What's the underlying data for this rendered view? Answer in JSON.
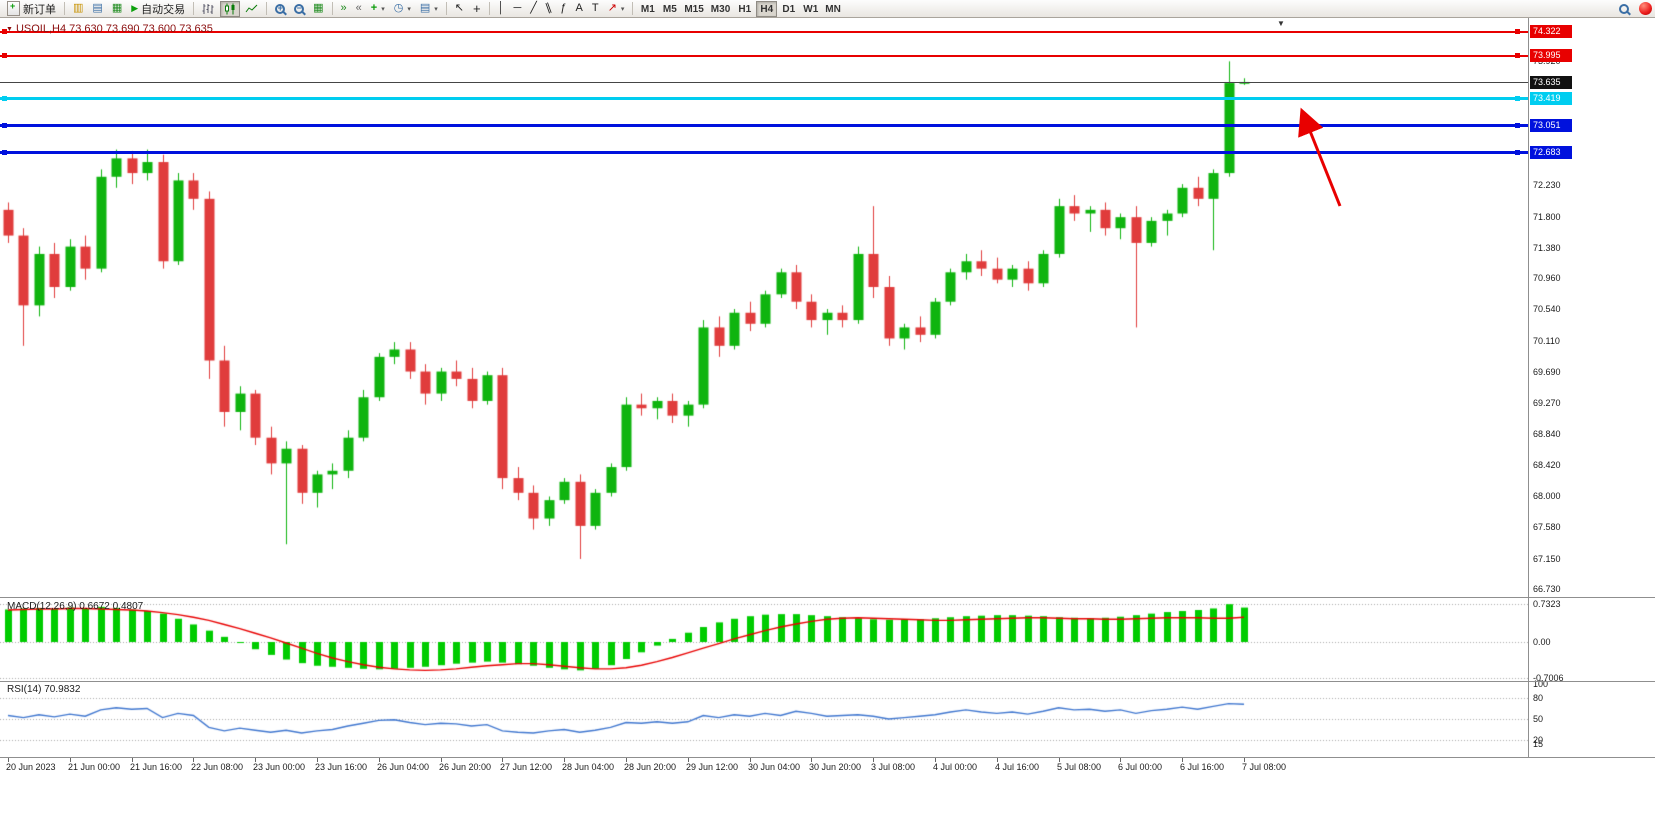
{
  "toolbar": {
    "new_order_label": "新订单",
    "autotrading_label": "自动交易",
    "timeframes": [
      "M1",
      "M5",
      "M15",
      "M30",
      "H1",
      "H4",
      "D1",
      "W1",
      "MN"
    ],
    "active_timeframe": "H4"
  },
  "chart": {
    "symbol_title": "USOIL,H4 73.630 73.690 73.600 73.635"
  },
  "chart_data": [
    {
      "type": "candlestick",
      "symbol": "USOIL",
      "timeframe": "H4",
      "title": "USOIL,H4 73.630 73.690 73.600 73.635",
      "up_color": "#0fb40f",
      "down_color": "#e03c3c",
      "ylim": [
        66.62,
        74.51
      ],
      "y_ticks": [
        "73.920",
        "72.230",
        "71.800",
        "71.380",
        "70.960",
        "70.540",
        "70.110",
        "69.690",
        "69.270",
        "68.840",
        "68.420",
        "68.000",
        "67.580",
        "67.150",
        "66.730"
      ],
      "x_label_every": 4,
      "x_labels": [
        "20 Jun 2023",
        "21 Jun 00:00",
        "21 Jun 16:00",
        "22 Jun 08:00",
        "23 Jun 00:00",
        "23 Jun 16:00",
        "26 Jun 04:00",
        "26 Jun 20:00",
        "27 Jun 12:00",
        "28 Jun 04:00",
        "28 Jun 20:00",
        "29 Jun 12:00",
        "30 Jun 04:00",
        "30 Jun 20:00",
        "3 Jul 08:00",
        "4 Jul 00:00",
        "4 Jul 16:00",
        "5 Jul 08:00",
        "6 Jul 00:00",
        "6 Jul 16:00",
        "7 Jul 08:00"
      ],
      "levels": [
        {
          "name": "resistance-line-1",
          "price": 74.322,
          "label": "74.322",
          "color": "#e80000",
          "badge": "#e80000",
          "text": "#ffffff",
          "thickness": 2,
          "handles": true
        },
        {
          "name": "resistance-line-2",
          "price": 73.995,
          "label": "73.995",
          "color": "#e80000",
          "badge": "#e80000",
          "text": "#ffffff",
          "thickness": 2,
          "handles": true
        },
        {
          "name": "current-price-line",
          "price": 73.635,
          "label": "73.635",
          "color": "#454545",
          "badge": "#111111",
          "text": "#ffffff",
          "thickness": 1,
          "handles": false
        },
        {
          "name": "support-line-cyan",
          "price": 73.419,
          "label": "73.419",
          "color": "#00cdf0",
          "badge": "#00cdf0",
          "text": "#ffffff",
          "thickness": 3,
          "handles": true
        },
        {
          "name": "support-line-blue-1",
          "price": 73.051,
          "label": "73.051",
          "color": "#0011dd",
          "badge": "#0011dd",
          "text": "#ffffff",
          "thickness": 3,
          "handles": true
        },
        {
          "name": "support-line-blue-2",
          "price": 72.683,
          "label": "72.683",
          "color": "#0011dd",
          "badge": "#0011dd",
          "text": "#ffffff",
          "thickness": 3,
          "handles": true
        }
      ],
      "ohlc": [
        [
          71.9,
          72.0,
          71.45,
          71.55
        ],
        [
          71.55,
          71.65,
          70.05,
          70.6
        ],
        [
          70.6,
          71.4,
          70.45,
          71.3
        ],
        [
          71.3,
          71.45,
          70.7,
          70.85
        ],
        [
          70.85,
          71.5,
          70.8,
          71.4
        ],
        [
          71.4,
          71.55,
          70.95,
          71.1
        ],
        [
          71.1,
          72.45,
          71.05,
          72.35
        ],
        [
          72.35,
          72.72,
          72.2,
          72.6
        ],
        [
          72.6,
          72.7,
          72.25,
          72.4
        ],
        [
          72.4,
          72.72,
          72.3,
          72.55
        ],
        [
          72.55,
          72.65,
          71.1,
          71.2
        ],
        [
          71.2,
          72.4,
          71.15,
          72.3
        ],
        [
          72.3,
          72.4,
          71.9,
          72.05
        ],
        [
          72.05,
          72.15,
          69.6,
          69.85
        ],
        [
          69.85,
          70.05,
          68.95,
          69.15
        ],
        [
          69.15,
          69.5,
          68.9,
          69.4
        ],
        [
          69.4,
          69.45,
          68.7,
          68.8
        ],
        [
          68.8,
          68.95,
          68.3,
          68.45
        ],
        [
          68.45,
          68.75,
          67.35,
          68.65
        ],
        [
          68.65,
          68.7,
          67.9,
          68.05
        ],
        [
          68.05,
          68.35,
          67.85,
          68.3
        ],
        [
          68.3,
          68.45,
          68.1,
          68.35
        ],
        [
          68.35,
          68.9,
          68.25,
          68.8
        ],
        [
          68.8,
          69.45,
          68.75,
          69.35
        ],
        [
          69.35,
          69.95,
          69.3,
          69.9
        ],
        [
          69.9,
          70.1,
          69.8,
          70.0
        ],
        [
          70.0,
          70.1,
          69.6,
          69.7
        ],
        [
          69.7,
          69.8,
          69.25,
          69.4
        ],
        [
          69.4,
          69.75,
          69.3,
          69.7
        ],
        [
          69.7,
          69.85,
          69.5,
          69.6
        ],
        [
          69.6,
          69.75,
          69.2,
          69.3
        ],
        [
          69.3,
          69.7,
          69.25,
          69.65
        ],
        [
          69.65,
          69.75,
          68.1,
          68.25
        ],
        [
          68.25,
          68.4,
          67.95,
          68.05
        ],
        [
          68.05,
          68.15,
          67.55,
          67.7
        ],
        [
          67.7,
          68.0,
          67.6,
          67.95
        ],
        [
          67.95,
          68.25,
          67.9,
          68.2
        ],
        [
          68.2,
          68.3,
          67.15,
          67.6
        ],
        [
          67.6,
          68.1,
          67.55,
          68.05
        ],
        [
          68.05,
          68.45,
          68.0,
          68.4
        ],
        [
          68.4,
          69.35,
          68.35,
          69.25
        ],
        [
          69.25,
          69.4,
          69.1,
          69.2
        ],
        [
          69.2,
          69.35,
          69.05,
          69.3
        ],
        [
          69.3,
          69.4,
          69.0,
          69.1
        ],
        [
          69.1,
          69.3,
          68.95,
          69.25
        ],
        [
          69.25,
          70.4,
          69.2,
          70.3
        ],
        [
          70.3,
          70.45,
          69.9,
          70.05
        ],
        [
          70.05,
          70.55,
          70.0,
          70.5
        ],
        [
          70.5,
          70.65,
          70.25,
          70.35
        ],
        [
          70.35,
          70.8,
          70.3,
          70.75
        ],
        [
          70.75,
          71.1,
          70.7,
          71.05
        ],
        [
          71.05,
          71.15,
          70.55,
          70.65
        ],
        [
          70.65,
          70.75,
          70.3,
          70.4
        ],
        [
          70.4,
          70.55,
          70.2,
          70.5
        ],
        [
          70.5,
          70.6,
          70.3,
          70.4
        ],
        [
          70.4,
          71.4,
          70.35,
          71.3
        ],
        [
          71.3,
          71.95,
          70.7,
          70.85
        ],
        [
          70.85,
          71.0,
          70.05,
          70.15
        ],
        [
          70.15,
          70.35,
          70.0,
          70.3
        ],
        [
          70.3,
          70.45,
          70.1,
          70.2
        ],
        [
          70.2,
          70.7,
          70.15,
          70.65
        ],
        [
          70.65,
          71.1,
          70.6,
          71.05
        ],
        [
          71.05,
          71.3,
          70.95,
          71.2
        ],
        [
          71.2,
          71.35,
          71.0,
          71.1
        ],
        [
          71.1,
          71.25,
          70.9,
          70.95
        ],
        [
          70.95,
          71.15,
          70.85,
          71.1
        ],
        [
          71.1,
          71.2,
          70.8,
          70.9
        ],
        [
          70.9,
          71.35,
          70.85,
          71.3
        ],
        [
          71.3,
          72.05,
          71.25,
          71.95
        ],
        [
          71.95,
          72.1,
          71.75,
          71.85
        ],
        [
          71.85,
          71.95,
          71.6,
          71.9
        ],
        [
          71.9,
          72.0,
          71.55,
          71.65
        ],
        [
          71.65,
          71.85,
          71.5,
          71.8
        ],
        [
          71.8,
          71.95,
          70.3,
          71.45
        ],
        [
          71.45,
          71.8,
          71.4,
          71.75
        ],
        [
          71.75,
          71.9,
          71.55,
          71.85
        ],
        [
          71.85,
          72.25,
          71.8,
          72.2
        ],
        [
          72.2,
          72.35,
          71.95,
          72.05
        ],
        [
          72.05,
          72.45,
          71.35,
          72.4
        ],
        [
          72.4,
          73.92,
          72.35,
          73.63
        ],
        [
          73.63,
          73.69,
          73.6,
          73.635
        ]
      ]
    },
    {
      "type": "bar",
      "name": "MACD(12,26,9)",
      "value_display": "0.6672 0.4807",
      "current_main": 0.6672,
      "current_signal": 0.4807,
      "hist_color": "#00cc00",
      "signal_color": "#e80000",
      "y_ticks": [
        "0.7323",
        "0.00",
        "-0.7006"
      ],
      "values": [
        0.63,
        0.65,
        0.66,
        0.64,
        0.67,
        0.65,
        0.68,
        0.66,
        0.63,
        0.6,
        0.55,
        0.45,
        0.34,
        0.22,
        0.1,
        -0.02,
        -0.14,
        -0.25,
        -0.34,
        -0.41,
        -0.46,
        -0.48,
        -0.5,
        -0.52,
        -0.53,
        -0.52,
        -0.5,
        -0.48,
        -0.45,
        -0.42,
        -0.4,
        -0.38,
        -0.4,
        -0.43,
        -0.46,
        -0.5,
        -0.53,
        -0.55,
        -0.52,
        -0.45,
        -0.33,
        -0.2,
        -0.07,
        0.06,
        0.18,
        0.29,
        0.38,
        0.45,
        0.5,
        0.53,
        0.54,
        0.54,
        0.52,
        0.5,
        0.48,
        0.46,
        0.44,
        0.43,
        0.43,
        0.44,
        0.46,
        0.48,
        0.5,
        0.51,
        0.52,
        0.52,
        0.51,
        0.5,
        0.48,
        0.47,
        0.46,
        0.47,
        0.49,
        0.52,
        0.55,
        0.58,
        0.6,
        0.62,
        0.65,
        0.7323,
        0.6672
      ],
      "signal": [
        0.62,
        0.63,
        0.64,
        0.64,
        0.65,
        0.65,
        0.64,
        0.63,
        0.62,
        0.6,
        0.57,
        0.53,
        0.48,
        0.42,
        0.34,
        0.26,
        0.17,
        0.08,
        -0.02,
        -0.12,
        -0.22,
        -0.31,
        -0.38,
        -0.44,
        -0.49,
        -0.52,
        -0.54,
        -0.55,
        -0.54,
        -0.52,
        -0.49,
        -0.46,
        -0.44,
        -0.42,
        -0.42,
        -0.44,
        -0.47,
        -0.5,
        -0.52,
        -0.52,
        -0.5,
        -0.45,
        -0.38,
        -0.3,
        -0.21,
        -0.12,
        -0.03,
        0.06,
        0.14,
        0.22,
        0.29,
        0.35,
        0.4,
        0.44,
        0.46,
        0.47,
        0.46,
        0.45,
        0.44,
        0.43,
        0.42,
        0.42,
        0.43,
        0.44,
        0.45,
        0.46,
        0.47,
        0.47,
        0.46,
        0.45,
        0.45,
        0.44,
        0.44,
        0.45,
        0.46,
        0.47,
        0.47,
        0.47,
        0.46,
        0.46,
        0.4807
      ]
    },
    {
      "type": "line",
      "name": "RSI(14)",
      "value_display": "70.9832",
      "current": 70.9832,
      "line_color": "#3f76cf",
      "levels": [
        80,
        50,
        20
      ],
      "y_ticks": [
        "100",
        "80",
        "50",
        "20",
        "15"
      ],
      "values": [
        55,
        52,
        56,
        53,
        57,
        54,
        63,
        66,
        64,
        65,
        52,
        58,
        55,
        38,
        33,
        37,
        34,
        31,
        34,
        30,
        33,
        35,
        40,
        44,
        48,
        49,
        45,
        42,
        44,
        43,
        40,
        42,
        33,
        31,
        30,
        33,
        35,
        31,
        34,
        38,
        45,
        44,
        46,
        44,
        46,
        55,
        52,
        56,
        54,
        58,
        55,
        61,
        58,
        54,
        55,
        56,
        54,
        50,
        52,
        54,
        56,
        60,
        63,
        60,
        58,
        60,
        57,
        61,
        66,
        63,
        64,
        61,
        63,
        58,
        62,
        64,
        67,
        64,
        68,
        72,
        70.98
      ]
    }
  ]
}
